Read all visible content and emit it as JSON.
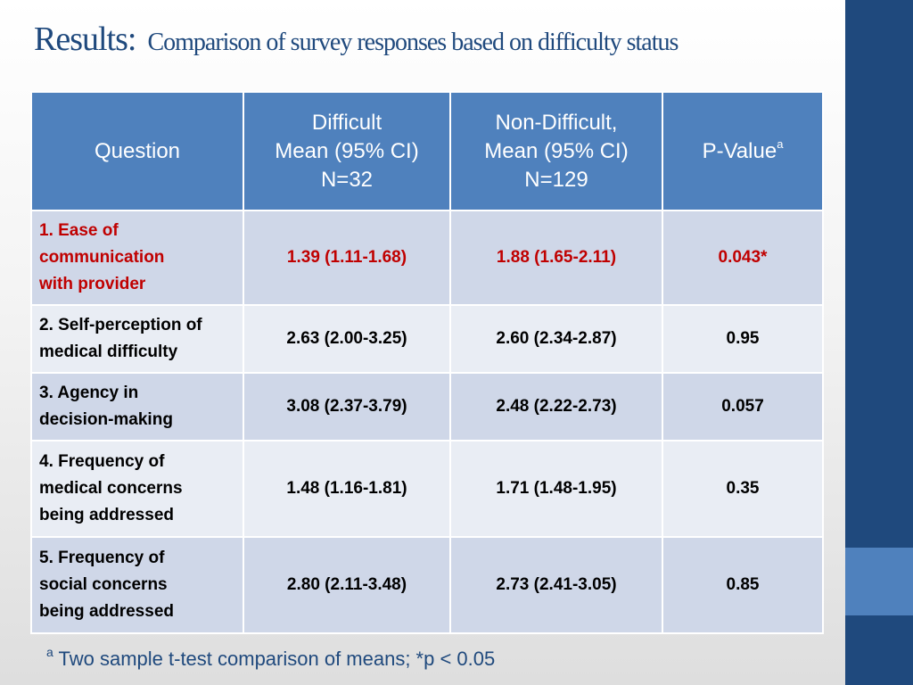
{
  "title": {
    "main": "Results:",
    "sub": "Comparison of survey responses based on difficulty status"
  },
  "table": {
    "headers": {
      "question": "Question",
      "difficult": [
        "Difficult",
        "Mean (95% CI)",
        "N=32"
      ],
      "non_difficult": [
        "Non-Difficult,",
        "Mean (95% CI)",
        "N=129"
      ],
      "p_value": "P-Value",
      "p_value_sup": "a"
    },
    "rows": [
      {
        "question": [
          "1. Ease of",
          "communication",
          "with provider"
        ],
        "difficult": "1.39 (1.11-1.68)",
        "non_difficult": "1.88 (1.65-2.11)",
        "p": "0.043*"
      },
      {
        "question": [
          "2. Self-perception of",
          "medical difficulty"
        ],
        "difficult": "2.63 (2.00-3.25)",
        "non_difficult": "2.60 (2.34-2.87)",
        "p": "0.95"
      },
      {
        "question": [
          "3. Agency in",
          "decision-making"
        ],
        "difficult": "3.08 (2.37-3.79)",
        "non_difficult": "2.48 (2.22-2.73)",
        "p": "0.057"
      },
      {
        "question": [
          "4. Frequency of",
          "medical concerns",
          "being addressed"
        ],
        "difficult": "1.48 (1.16-1.81)",
        "non_difficult": "1.71 (1.48-1.95)",
        "p": "0.35"
      },
      {
        "question": [
          "5. Frequency of",
          "social concerns",
          "being addressed"
        ],
        "difficult": "2.80 (2.11-3.48)",
        "non_difficult": "2.73 (2.41-3.05)",
        "p": "0.85"
      }
    ]
  },
  "footnote": {
    "sup": "a",
    "text": " Two sample t-test comparison of means; *p < 0.05"
  },
  "colors": {
    "title": "#1f497d",
    "header_bg": "#4f81bd",
    "row_odd": "#cfd7e8",
    "row_even": "#e9edf4",
    "highlight_text": "#c00000",
    "sidebar": "#1f497d",
    "sidebar_accent": "#4f81bd"
  }
}
